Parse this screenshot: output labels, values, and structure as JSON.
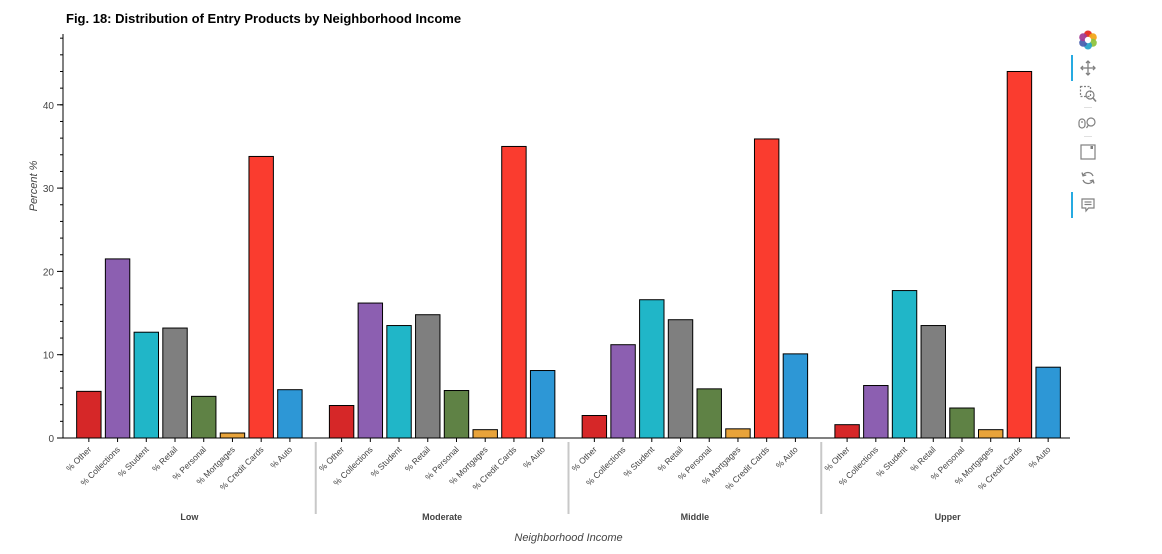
{
  "chart_data": {
    "type": "bar",
    "title": "Fig. 18: Distribution of Entry Products by Neighborhood Income",
    "xlabel": "Neighborhood Income",
    "ylabel": "Percent %",
    "ylim": [
      0,
      48.5
    ],
    "yticks": [
      0,
      10,
      20,
      30,
      40
    ],
    "grid": false,
    "groups": [
      "Low",
      "Moderate",
      "Middle",
      "Upper"
    ],
    "categories": [
      "% Other",
      "% Collections",
      "% Student",
      "% Retail",
      "% Personal",
      "% Mortgages",
      "% Credit Cards",
      "% Auto"
    ],
    "category_colors": [
      "#d62728",
      "#8c5fb1",
      "#20b6c8",
      "#7f7f7f",
      "#5f8245",
      "#e8a33a",
      "#fa3c2f",
      "#2d97d6"
    ],
    "series": [
      {
        "group": "Low",
        "values": [
          5.6,
          21.5,
          12.7,
          13.2,
          5.0,
          0.6,
          33.8,
          5.8
        ]
      },
      {
        "group": "Moderate",
        "values": [
          3.9,
          16.2,
          13.5,
          14.8,
          5.7,
          1.0,
          35.0,
          8.1
        ]
      },
      {
        "group": "Middle",
        "values": [
          2.7,
          11.2,
          16.6,
          14.2,
          5.9,
          1.1,
          35.9,
          10.1
        ]
      },
      {
        "group": "Upper",
        "values": [
          1.6,
          6.3,
          17.7,
          13.5,
          3.6,
          1.0,
          44.0,
          8.5
        ]
      }
    ]
  },
  "toolbar": {
    "tools": [
      "bokeh-logo",
      "pan",
      "box-zoom",
      "wheel-zoom",
      "save",
      "reset",
      "hover"
    ]
  }
}
